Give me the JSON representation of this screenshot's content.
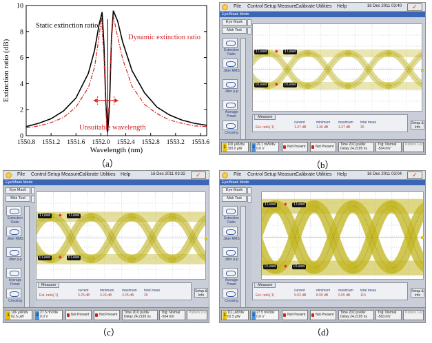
{
  "captions": {
    "a": "（a）",
    "b": "（b）",
    "c": "（c）",
    "d": "（d）"
  },
  "chart_data": {
    "type": "line",
    "title": "",
    "xlabel": "Wavelength (nm)",
    "ylabel": "Extinction ratio (dB)",
    "xlim": [
      1550.8,
      1553.7
    ],
    "ylim": [
      0,
      10
    ],
    "xticks": [
      "1550.8",
      "1551.2",
      "1551.6",
      "1552.0",
      "1552.4",
      "1552.8",
      "1553.2",
      "1553.6"
    ],
    "yticks": [
      "0",
      "2",
      "4",
      "6",
      "8",
      "10"
    ],
    "annotations": {
      "static": "Static extinction ratio",
      "dynamic": "Dynamic extinction ratio",
      "unsuitable": "Unsuitable wavelength"
    },
    "series": [
      {
        "color": "#000000",
        "style": "solid",
        "x": [
          1550.8,
          1551.0,
          1551.2,
          1551.4,
          1551.6,
          1551.8,
          1551.9,
          1551.97,
          1552.02,
          1552.05,
          1552.08,
          1552.11,
          1552.14,
          1552.17,
          1552.2,
          1552.27,
          1552.35,
          1552.5,
          1552.7,
          1552.9,
          1553.1,
          1553.3,
          1553.5,
          1553.7
        ],
        "y": [
          0.7,
          0.95,
          1.3,
          1.9,
          2.9,
          4.8,
          6.6,
          8.5,
          9.5,
          7.0,
          2.5,
          0.3,
          2.5,
          7.5,
          9.6,
          8.8,
          7.2,
          5.0,
          3.3,
          2.2,
          1.6,
          1.2,
          0.95,
          0.8
        ]
      },
      {
        "color": "#d42020",
        "style": "dashed",
        "x": [
          1550.8,
          1551.0,
          1551.2,
          1551.4,
          1551.6,
          1551.8,
          1551.9,
          1551.97,
          1552.01,
          1552.05,
          1552.08,
          1552.1,
          1552.13,
          1552.16,
          1552.2,
          1552.25,
          1552.35,
          1552.5,
          1552.7,
          1552.9,
          1553.1,
          1553.3,
          1553.5,
          1553.7
        ],
        "y": [
          0.6,
          0.75,
          1.0,
          1.4,
          2.2,
          3.7,
          5.3,
          7.6,
          9.1,
          6.0,
          2.0,
          0.3,
          2.3,
          6.5,
          9.2,
          8.0,
          5.9,
          3.8,
          2.4,
          1.7,
          1.2,
          0.95,
          0.75,
          0.7
        ]
      }
    ]
  },
  "scopes": [
    {
      "id": "b",
      "date": "16 Dec 2011  03:40",
      "results": {
        "ext": "Ext. ratio(  1)",
        "current": "1.37 dB",
        "minimum": "1.36 dB",
        "maximum": "1.37 dB",
        "total": "30"
      },
      "ch1": {
        "scale": "100 μW/div",
        "offset": "320.0 μW"
      },
      "ch2": {
        "scale": "29.1 mW/div",
        "offset": "0.0 V"
      },
      "ch3": "Not Present",
      "ch4": "Not Present",
      "time": {
        "scale": "Time 20.0 ps/div",
        "delay": "Delay 24.2195 ns"
      },
      "trig": {
        "label": "Trig: Normal",
        "level": "-504 mV"
      }
    },
    {
      "id": "c",
      "date": "16 Dec 2011  03:32",
      "results": {
        "ext": "Ext. ratio(  1)",
        "current": "3.25 dB",
        "minimum": "3.24 dB",
        "maximum": "3.25 dB",
        "total": "25"
      },
      "ch1": {
        "scale": "106 μW/div",
        "offset": "62.5 μW"
      },
      "ch2": {
        "scale": "27.5 mV/div",
        "offset": "0.0 V"
      },
      "ch3": "Not Present",
      "ch4": "Not Present",
      "time": {
        "scale": "Time 20.0 ps/div",
        "delay": "Delay 24.2195 ns"
      },
      "trig": {
        "label": "Trig: Normal",
        "level": "-504 mV"
      }
    },
    {
      "id": "d",
      "date": "16 Dec 2011  03:04",
      "results": {
        "ext": "Ext. ratio(  1)",
        "current": "9.03 dB",
        "minimum": "8.99 dB",
        "maximum": "9.05 dB",
        "total": "115"
      },
      "ch1": {
        "scale": "111 μW/div",
        "offset": "62.5 μW"
      },
      "ch2": {
        "scale": "27.5 mV/div",
        "offset": "0.0 V"
      },
      "ch3": "Not Present",
      "ch4": "Not Present",
      "time": {
        "scale": "Time 20.0 ps/div",
        "delay": "Delay 24.2195 ns"
      },
      "trig": {
        "label": "Trig: Normal",
        "level": "-563 mV"
      }
    }
  ],
  "scope_ui": {
    "menus": [
      "File",
      "Control",
      "Setup",
      "Measure",
      "Calibrate",
      "Utilities",
      "Help"
    ],
    "mode": "Eye/Mask Mode",
    "eye_mask_button": "Eye Mask",
    "mask_test_button": "Msk Test",
    "measurements": [
      "Extinction Ratio",
      "Jitter RMS",
      "Jitter p-p",
      "Average Power",
      "Crossing"
    ],
    "level_1": "1 Level",
    "level_0": "0 Level",
    "results_tab": "Measure",
    "col_current": "current",
    "col_minimum": "minimum",
    "col_maximum": "maximum",
    "col_total": "total meas",
    "setup_label": "Setup & Info",
    "pattern_lock": "Pattern Lock"
  }
}
